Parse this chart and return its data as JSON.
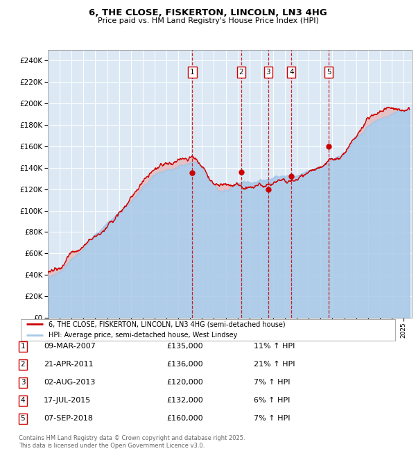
{
  "title": "6, THE CLOSE, FISKERTON, LINCOLN, LN3 4HG",
  "subtitle": "Price paid vs. HM Land Registry's House Price Index (HPI)",
  "hpi_color": "#a8c8e8",
  "price_color": "#cc0000",
  "plot_bg": "#dce9f5",
  "ylim": [
    0,
    250000
  ],
  "yticks": [
    0,
    20000,
    40000,
    60000,
    80000,
    100000,
    120000,
    140000,
    160000,
    180000,
    200000,
    220000,
    240000
  ],
  "legend_line1": "6, THE CLOSE, FISKERTON, LINCOLN, LN3 4HG (semi-detached house)",
  "legend_line2": "HPI: Average price, semi-detached house, West Lindsey",
  "transactions": [
    {
      "num": 1,
      "date": "09-MAR-2007",
      "price": 135000,
      "pct": "11%",
      "dir": "↑",
      "year": 2007.19
    },
    {
      "num": 2,
      "date": "21-APR-2011",
      "price": 136000,
      "pct": "21%",
      "dir": "↑",
      "year": 2011.31
    },
    {
      "num": 3,
      "date": "02-AUG-2013",
      "price": 120000,
      "pct": "7%",
      "dir": "↑",
      "year": 2013.59
    },
    {
      "num": 4,
      "date": "17-JUL-2015",
      "price": 132000,
      "pct": "6%",
      "dir": "↑",
      "year": 2015.54
    },
    {
      "num": 5,
      "date": "07-SEP-2018",
      "price": 160000,
      "pct": "7%",
      "dir": "↑",
      "year": 2018.69
    }
  ],
  "footer": "Contains HM Land Registry data © Crown copyright and database right 2025.\nThis data is licensed under the Open Government Licence v3.0."
}
